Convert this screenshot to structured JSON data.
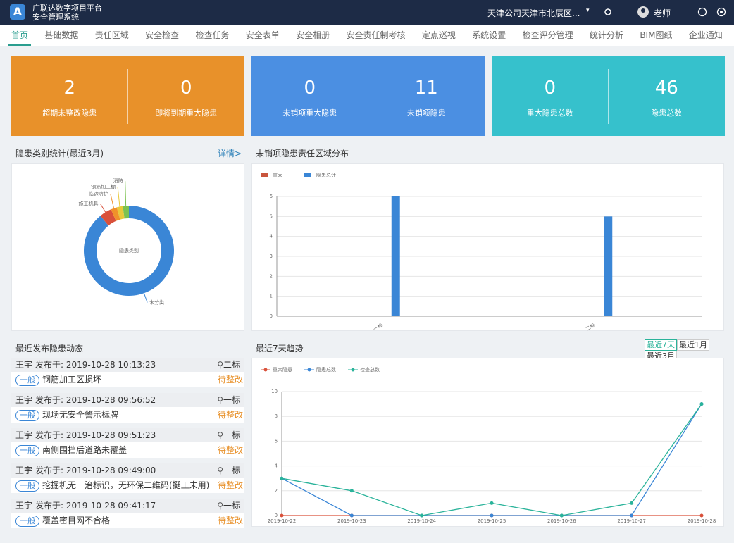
{
  "header": {
    "logo": "A",
    "title_line1": "广联达数字项目平台",
    "title_line2": "安全管理系统",
    "company": "天津公司天津市北辰区...",
    "user": "老师"
  },
  "nav": [
    "首页",
    "基础数据",
    "责任区域",
    "安全检查",
    "检查任务",
    "安全表单",
    "安全相册",
    "安全责任制考核",
    "定点巡视",
    "系统设置",
    "检查评分管理",
    "统计分析",
    "BIM图纸",
    "企业通知"
  ],
  "stats": [
    {
      "value": 2,
      "label": "超期未整改隐患"
    },
    {
      "value": 0,
      "label": "即将到期重大隐患"
    },
    {
      "value": 0,
      "label": "未销项重大隐患"
    },
    {
      "value": 11,
      "label": "未销项隐患"
    },
    {
      "value": 0,
      "label": "重大隐患总数"
    },
    {
      "value": 46,
      "label": "隐患总数"
    }
  ],
  "category_panel": {
    "detail_link": "详情>"
  },
  "feed": {
    "title": "最近发布隐患动态",
    "items": [
      {
        "author": "王宇",
        "time": "发布于: 2019-10-28 10:13:23",
        "location": "二标",
        "level": "一般",
        "description": "钢筋加工区损坏",
        "status": "待整改"
      },
      {
        "author": "王宇",
        "time": "发布于: 2019-10-28 09:56:52",
        "location": "一标",
        "level": "一般",
        "description": "现场无安全警示标牌",
        "status": "待整改"
      },
      {
        "author": "王宇",
        "time": "发布于: 2019-10-28 09:51:23",
        "location": "一标",
        "level": "一般",
        "description": "南侧围挡后道路未覆盖",
        "status": "待整改"
      },
      {
        "author": "王宇",
        "time": "发布于: 2019-10-28 09:49:00",
        "location": "一标",
        "level": "一般",
        "description": "挖掘机无一治标识，无环保二维码(挺工未用)",
        "status": "待整改"
      },
      {
        "author": "王宇",
        "time": "发布于: 2019-10-28 09:41:17",
        "location": "一标",
        "level": "一般",
        "description": "覆盖密目网不合格",
        "status": "待整改"
      }
    ]
  },
  "trend_panel": {
    "ranges": [
      "最近7天",
      "最近1月",
      "最近3月"
    ]
  },
  "chart_data": [
    {
      "type": "pie",
      "title": "隐患类别统计(最近3月)",
      "center_label": "隐患类别",
      "categories": [
        "未分类",
        "施工机具",
        "临边防护",
        "钢筋加工棚",
        "消防"
      ],
      "values": [
        41,
        2,
        1,
        1,
        1
      ],
      "colors": [
        "#3a86d6",
        "#d9503a",
        "#f0912a",
        "#e8c93a",
        "#7cc251"
      ]
    },
    {
      "type": "bar",
      "title": "未销项隐患责任区域分布",
      "categories": [
        "一标",
        "二标"
      ],
      "series": [
        {
          "name": "重大",
          "color": "#c9553d",
          "values": [
            0,
            0
          ]
        },
        {
          "name": "隐患总计",
          "color": "#3a86d6",
          "values": [
            6,
            5
          ]
        }
      ],
      "ylim": [
        0,
        6
      ],
      "yticks": [
        0,
        1,
        2,
        3,
        4,
        5,
        6
      ],
      "grid": true
    },
    {
      "type": "line",
      "title": "最近7天趋势",
      "categories": [
        "2019-10-22",
        "2019-10-23",
        "2019-10-24",
        "2019-10-25",
        "2019-10-26",
        "2019-10-27",
        "2019-10-28"
      ],
      "series": [
        {
          "name": "重大隐患",
          "color": "#d9503a",
          "values": [
            0,
            0,
            0,
            0,
            0,
            0,
            0
          ]
        },
        {
          "name": "隐患总数",
          "color": "#3a86d6",
          "values": [
            3,
            0,
            0,
            0,
            0,
            0,
            9
          ]
        },
        {
          "name": "检查总数",
          "color": "#2ab39a",
          "values": [
            3,
            2,
            0,
            1,
            0,
            1,
            9
          ]
        }
      ],
      "ylim": [
        0,
        10
      ],
      "yticks": [
        0,
        2,
        4,
        6,
        8,
        10
      ],
      "grid": true
    }
  ]
}
